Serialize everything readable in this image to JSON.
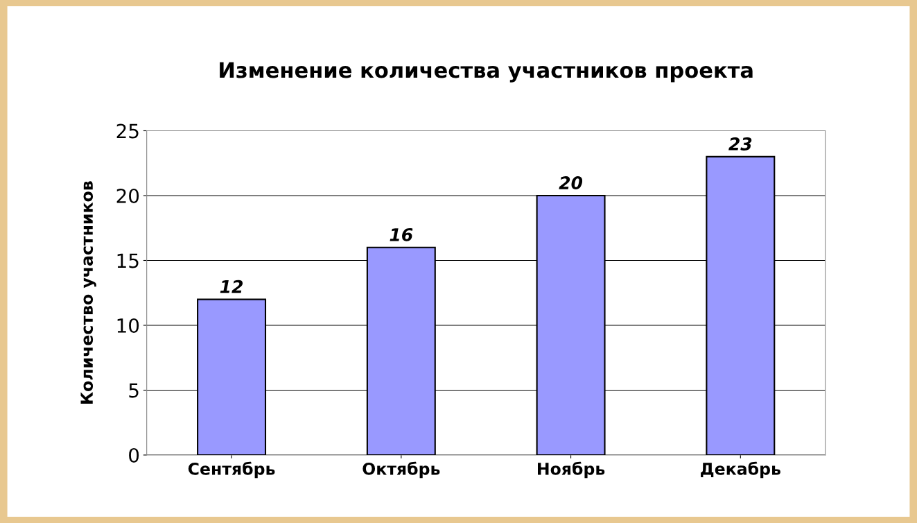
{
  "chart_data": {
    "type": "bar",
    "title": "Изменение количества участников проекта",
    "ylabel": "Количество участников",
    "categories": [
      "Сентябрь",
      "Октябрь",
      "Ноябрь",
      "Декабрь"
    ],
    "values": [
      12,
      16,
      20,
      23
    ],
    "color": "#9999ff",
    "ylim": [
      0,
      25
    ],
    "yticks": [
      0,
      5,
      10,
      15,
      20,
      25
    ],
    "grid": "y",
    "data_labels": true
  }
}
